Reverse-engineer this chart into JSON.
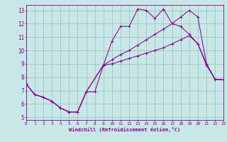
{
  "xlabel": "Windchill (Refroidissement éolien,°C)",
  "bg_color": "#c8e8e8",
  "line_color": "#880088",
  "grid_color": "#99bbbb",
  "xlim": [
    0,
    23
  ],
  "ylim": [
    4.8,
    13.4
  ],
  "xticks": [
    0,
    1,
    2,
    3,
    4,
    5,
    6,
    7,
    8,
    9,
    10,
    11,
    12,
    13,
    14,
    15,
    16,
    17,
    18,
    19,
    20,
    21,
    22,
    23
  ],
  "yticks": [
    5,
    6,
    7,
    8,
    9,
    10,
    11,
    12,
    13
  ],
  "line1_x": [
    0,
    1,
    2,
    3,
    4,
    5,
    6,
    7,
    8,
    9,
    10,
    11,
    12,
    13,
    14,
    15,
    16,
    17,
    18,
    19,
    20,
    21,
    22,
    23
  ],
  "line1_y": [
    7.5,
    6.7,
    6.5,
    6.2,
    5.7,
    5.4,
    5.4,
    6.9,
    6.9,
    8.9,
    10.7,
    11.8,
    11.8,
    13.1,
    13.0,
    12.4,
    13.1,
    12.0,
    11.8,
    11.2,
    10.5,
    8.9,
    7.85,
    7.8
  ],
  "line2_x": [
    0,
    1,
    2,
    3,
    4,
    5,
    6,
    7,
    9,
    10,
    11,
    12,
    13,
    14,
    15,
    16,
    17,
    18,
    19,
    20,
    21,
    22,
    23
  ],
  "line2_y": [
    7.5,
    6.7,
    6.5,
    6.2,
    5.7,
    5.4,
    5.4,
    6.9,
    8.9,
    9.3,
    9.7,
    10.0,
    10.4,
    10.8,
    11.2,
    11.6,
    12.0,
    12.5,
    13.0,
    12.5,
    9.0,
    7.85,
    7.8
  ],
  "line3_x": [
    0,
    1,
    2,
    3,
    4,
    5,
    6,
    7,
    9,
    10,
    11,
    12,
    13,
    14,
    15,
    16,
    17,
    18,
    19,
    20,
    21,
    22,
    23
  ],
  "line3_y": [
    7.5,
    6.7,
    6.5,
    6.2,
    5.7,
    5.4,
    5.4,
    6.9,
    8.9,
    9.0,
    9.2,
    9.4,
    9.6,
    9.8,
    10.0,
    10.2,
    10.5,
    10.8,
    11.1,
    10.5,
    9.0,
    7.85,
    7.8
  ]
}
